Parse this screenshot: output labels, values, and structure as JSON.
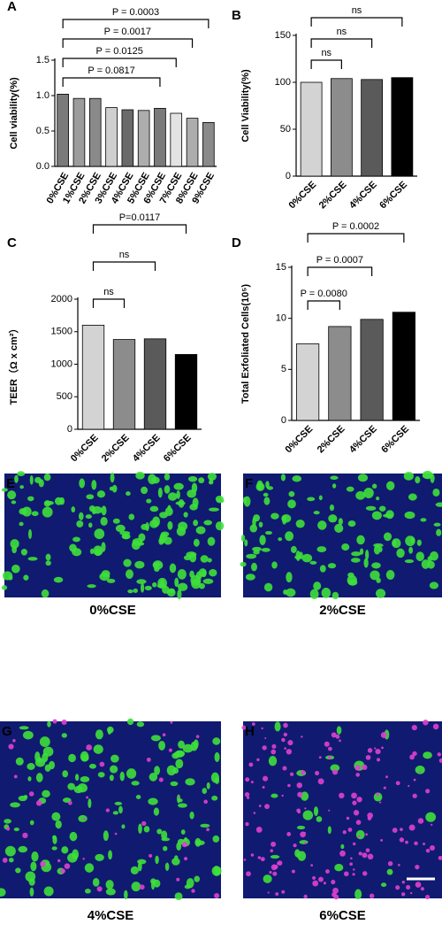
{
  "chart_data": [
    {
      "type": "bar",
      "panel": "A",
      "ylabel": "Cell viability(%)",
      "categories": [
        "0%CSE",
        "1%CSE",
        "2%CSE",
        "3%CSE",
        "4%CSE",
        "5%CSE",
        "6%CSE",
        "7%CSE",
        "8%CSE",
        "9%CSE"
      ],
      "values": [
        1.02,
        0.96,
        0.96,
        0.83,
        0.8,
        0.79,
        0.82,
        0.75,
        0.68,
        0.62
      ],
      "colors": [
        "#7a7a7a",
        "#9c9c9c",
        "#8a8a8a",
        "#cfcfcf",
        "#6a6a6a",
        "#adadad",
        "#7a7a7a",
        "#e3e3e3",
        "#adadad",
        "#8a8a8a"
      ],
      "ylim": [
        0,
        1.5
      ],
      "yticks": [
        {
          "value": 0,
          "label": "0.0"
        },
        {
          "value": 0.5,
          "label": "0.5"
        },
        {
          "value": 1,
          "label": "1.0"
        },
        {
          "value": 1.5,
          "label": "1.5"
        }
      ],
      "comparisons": [
        {
          "label": "P = 0.0817",
          "groups": [
            "0%CSE",
            "6%CSE"
          ]
        },
        {
          "label": "P = 0.0125",
          "groups": [
            "0%CSE",
            "7%CSE"
          ]
        },
        {
          "label": "P = 0.0017",
          "groups": [
            "0%CSE",
            "8%CSE"
          ]
        },
        {
          "label": "P = 0.0003",
          "groups": [
            "0%CSE",
            "9%CSE"
          ]
        }
      ]
    },
    {
      "type": "bar",
      "panel": "B",
      "ylabel": "Cell Viability(%)",
      "categories": [
        "0%CSE",
        "2%CSE",
        "4%CSE",
        "6%CSE"
      ],
      "values": [
        100,
        104,
        103,
        105
      ],
      "colors": [
        "#d3d3d3",
        "#8c8c8c",
        "#5a5a5a",
        "#000000"
      ],
      "ylim": [
        0,
        150
      ],
      "yticks": [
        0,
        50,
        100,
        150
      ],
      "comparisons": [
        {
          "label": "ns",
          "groups": [
            "0%CSE",
            "2%CSE"
          ]
        },
        {
          "label": "ns",
          "groups": [
            "0%CSE",
            "4%CSE"
          ]
        },
        {
          "label": "ns",
          "groups": [
            "0%CSE",
            "6%CSE"
          ]
        }
      ]
    },
    {
      "type": "bar",
      "panel": "C",
      "ylabel": "TEER（Ω x cm²）",
      "categories": [
        "0%CSE",
        "2%CSE",
        "4%CSE",
        "6%CSE"
      ],
      "values": [
        1600,
        1380,
        1390,
        1150
      ],
      "colors": [
        "#d3d3d3",
        "#8c8c8c",
        "#5a5a5a",
        "#000000"
      ],
      "ylim": [
        0,
        2000
      ],
      "yticks": [
        0,
        500,
        1000,
        1500,
        2000
      ],
      "comparisons": [
        {
          "label": "ns",
          "groups": [
            "0%CSE",
            "2%CSE"
          ]
        },
        {
          "label": "ns",
          "groups": [
            "0%CSE",
            "4%CSE"
          ]
        },
        {
          "label": "P=0.0117",
          "groups": [
            "0%CSE",
            "6%CSE"
          ]
        }
      ]
    },
    {
      "type": "bar",
      "panel": "D",
      "ylabel": "Total Exfoliated Cells(10⁵)",
      "categories": [
        "0%CSE",
        "2%CSE",
        "4%CSE",
        "6%CSE"
      ],
      "values": [
        7.5,
        9.2,
        9.9,
        10.6
      ],
      "colors": [
        "#d3d3d3",
        "#8c8c8c",
        "#5a5a5a",
        "#000000"
      ],
      "ylim": [
        0,
        15
      ],
      "yticks": [
        0,
        5,
        10,
        15
      ],
      "comparisons": [
        {
          "label": "P = 0.0080",
          "groups": [
            "0%CSE",
            "2%CSE"
          ]
        },
        {
          "label": "P = 0.0007",
          "groups": [
            "0%CSE",
            "4%CSE"
          ]
        },
        {
          "label": "P = 0.0002",
          "groups": [
            "0%CSE",
            "6%CSE"
          ]
        }
      ]
    }
  ],
  "images": [
    {
      "panel": "E",
      "label": "0%CSE"
    },
    {
      "panel": "F",
      "label": "2%CSE"
    },
    {
      "panel": "G",
      "label": "4%CSE"
    },
    {
      "panel": "H",
      "label": "6%CSE"
    }
  ]
}
